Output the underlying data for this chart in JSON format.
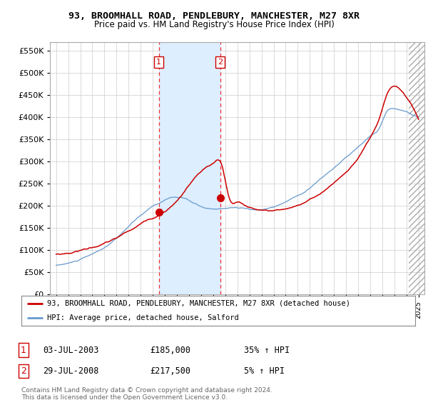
{
  "title": "93, BROOMHALL ROAD, PENDLEBURY, MANCHESTER, M27 8XR",
  "subtitle": "Price paid vs. HM Land Registry's House Price Index (HPI)",
  "ylim": [
    0,
    570000
  ],
  "yticks": [
    0,
    50000,
    100000,
    150000,
    200000,
    250000,
    300000,
    350000,
    400000,
    450000,
    500000,
    550000
  ],
  "ytick_labels": [
    "£0",
    "£50K",
    "£100K",
    "£150K",
    "£200K",
    "£250K",
    "£300K",
    "£350K",
    "£400K",
    "£450K",
    "£500K",
    "£550K"
  ],
  "bg_color": "#ffffff",
  "plot_bg_color": "#ffffff",
  "grid_color": "#cccccc",
  "line1_color": "#cc0000",
  "line2_color": "#6699cc",
  "shade_color": "#ddeeff",
  "vline_color": "#ee3333",
  "transaction1_date": 2003.5,
  "transaction1_price": 185000,
  "transaction2_date": 2008.58,
  "transaction2_price": 217500,
  "legend_line1": "93, BROOMHALL ROAD, PENDLEBURY, MANCHESTER, M27 8XR (detached house)",
  "legend_line2": "HPI: Average price, detached house, Salford",
  "table_row1": [
    "1",
    "03-JUL-2003",
    "£185,000",
    "35% ↑ HPI"
  ],
  "table_row2": [
    "2",
    "29-JUL-2008",
    "£217,500",
    "5% ↑ HPI"
  ],
  "footnote": "Contains HM Land Registry data © Crown copyright and database right 2024.\nThis data is licensed under the Open Government Licence v3.0.",
  "transaction_box_color": "#cc0000"
}
